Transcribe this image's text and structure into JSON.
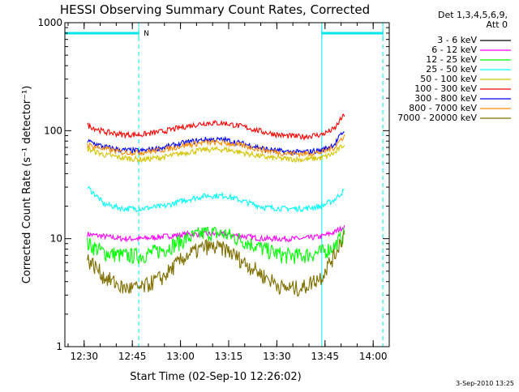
{
  "chart_data": {
    "type": "line",
    "title": "HESSI Observing Summary Count Rates, Corrected",
    "xlabel": "Start Time (02-Sep-10 12:26:02)",
    "ylabel": "Corrected Count Rate (s⁻¹ detector⁻¹)",
    "yscale": "log",
    "xlim": [
      "12:24",
      "14:05"
    ],
    "ylim": [
      1,
      1000
    ],
    "x_ticks": [
      "12:30",
      "12:45",
      "13:00",
      "13:15",
      "13:30",
      "13:45",
      "14:00"
    ],
    "y_ticks": [
      "1",
      "10",
      "100",
      "1000"
    ],
    "grid": false,
    "legend_header": [
      "Det 1,3,4,5,6,9,",
      "Att 0"
    ],
    "legend_position": "top-right, outside plot",
    "x": [
      "12:31",
      "12:36",
      "12:42",
      "12:48",
      "12:55",
      "13:02",
      "13:08",
      "13:14",
      "13:20",
      "13:26",
      "13:32",
      "13:38",
      "13:44",
      "13:48",
      "13:51"
    ],
    "series": [
      {
        "name": "3 - 6 keV",
        "color": "#000000",
        "values": [
          null,
          null,
          null,
          null,
          null,
          null,
          null,
          null,
          null,
          null,
          null,
          null,
          null,
          null,
          null
        ]
      },
      {
        "name": "6 - 12 keV",
        "color": "#ff00ff",
        "values": [
          11,
          10.5,
          10,
          10,
          10.5,
          11,
          11,
          11,
          10.5,
          10,
          10,
          10,
          10.5,
          11.5,
          13
        ]
      },
      {
        "name": "12 - 25 keV",
        "color": "#00ff00",
        "values": [
          9,
          7.5,
          7,
          7,
          8,
          10,
          11.5,
          11,
          9.5,
          8,
          7,
          7,
          7.5,
          8.5,
          11
        ]
      },
      {
        "name": "25 - 50 keV",
        "color": "#00ffff",
        "values": [
          30,
          21,
          19,
          19,
          20,
          23,
          25,
          25,
          22,
          19.5,
          19,
          19,
          20,
          23,
          28
        ]
      },
      {
        "name": "50 - 100 keV",
        "color": "#d4c400",
        "values": [
          68,
          60,
          56,
          54,
          57,
          63,
          67,
          67,
          62,
          57,
          55,
          54,
          56,
          62,
          75
        ]
      },
      {
        "name": "100 - 300 keV",
        "color": "#ff0000",
        "values": [
          112,
          98,
          92,
          92,
          99,
          110,
          118,
          117,
          108,
          97,
          90,
          88,
          92,
          104,
          140
        ]
      },
      {
        "name": "300 - 800 keV",
        "color": "#0000ff",
        "values": [
          80,
          71,
          66,
          65,
          70,
          78,
          83,
          82,
          75,
          68,
          64,
          63,
          66,
          75,
          100
        ]
      },
      {
        "name": "800 - 7000 keV",
        "color": "#ff8c00",
        "values": [
          74,
          68,
          63,
          63,
          67,
          74,
          78,
          77,
          72,
          66,
          62,
          61,
          63,
          70,
          90
        ]
      },
      {
        "name": "7000 - 20000 keV",
        "color": "#807000",
        "values": [
          6.5,
          4.5,
          3.5,
          3.5,
          4.5,
          7,
          8.5,
          8,
          6,
          4.5,
          3.5,
          3.5,
          4.5,
          7,
          11
        ]
      }
    ],
    "night_intervals": [
      [
        "12:24",
        "12:47"
      ],
      [
        "13:44",
        "14:03"
      ]
    ],
    "saa_label": "N"
  },
  "footer": {
    "date_stamp": "3-Sep-2010 13:25"
  }
}
